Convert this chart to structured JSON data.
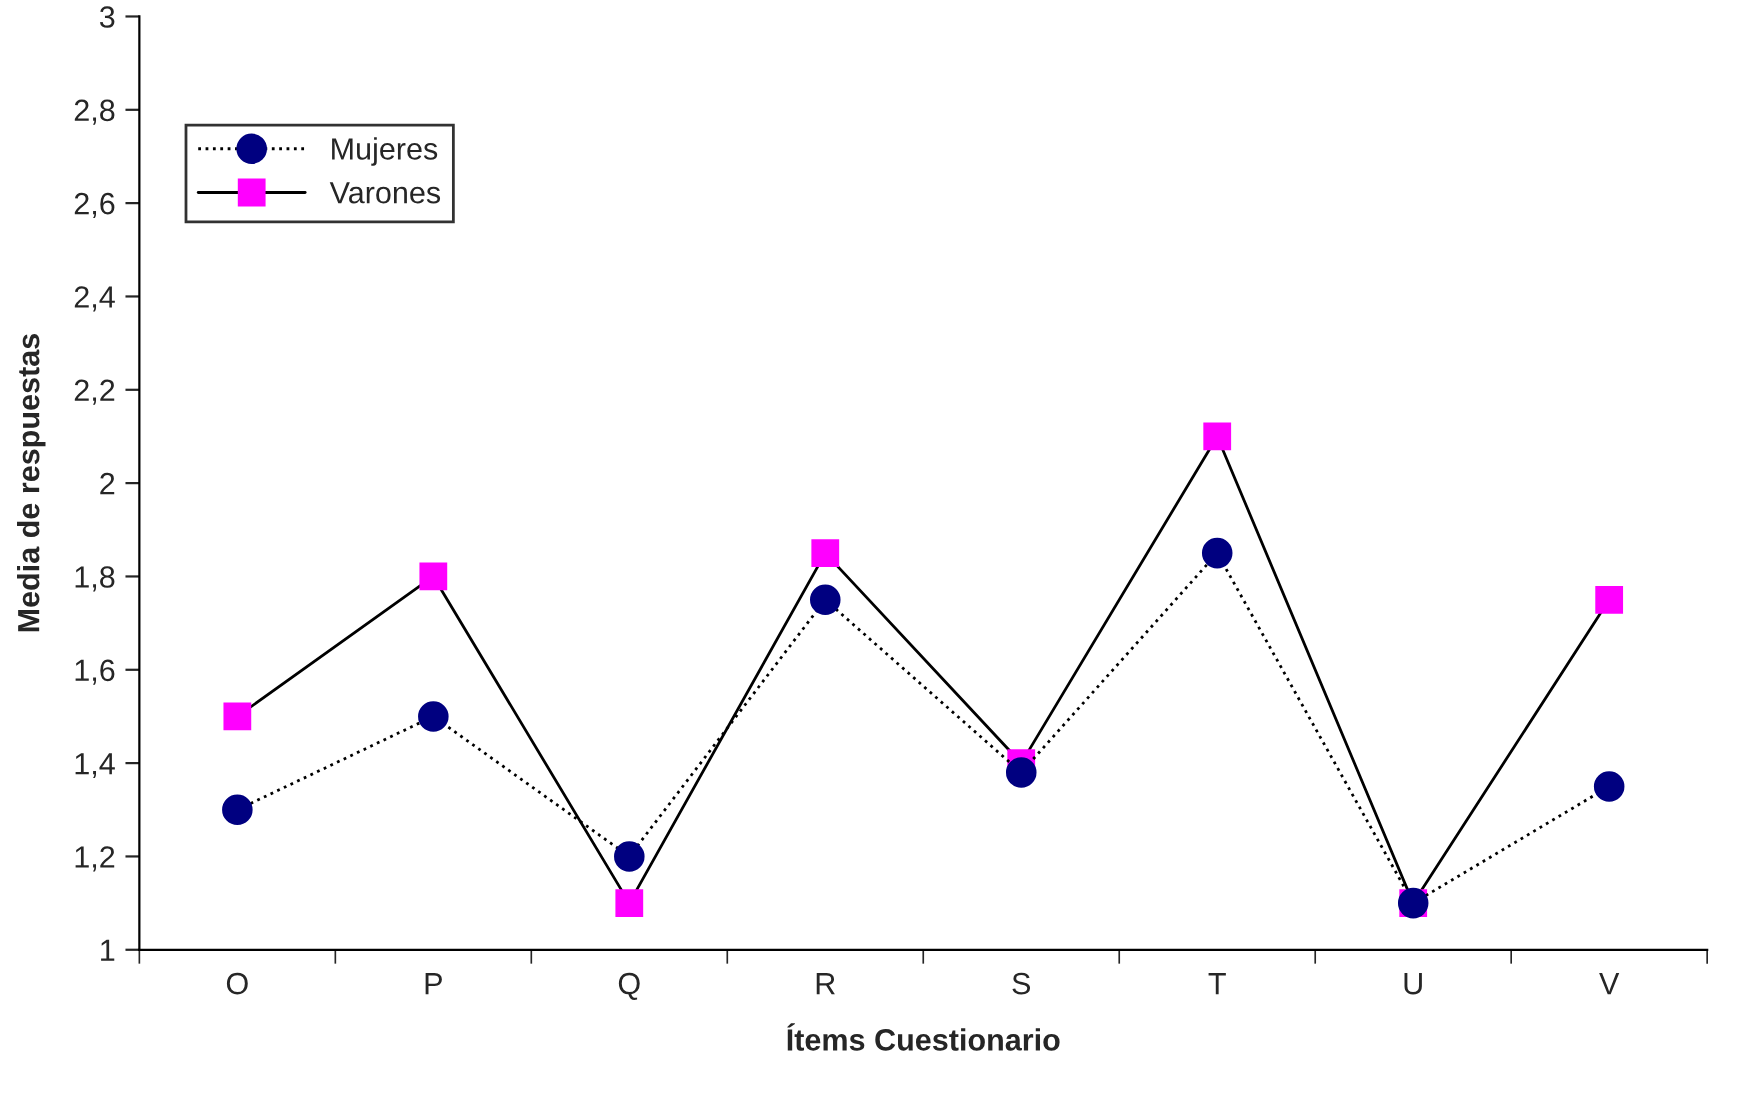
{
  "chart_data": {
    "type": "line",
    "xlabel": "Ítems Cuestionario",
    "ylabel": "Media de respuestas",
    "categories": [
      "O",
      "P",
      "Q",
      "R",
      "S",
      "T",
      "U",
      "V"
    ],
    "series": [
      {
        "name": "Mujeres",
        "color": "#000080",
        "marker": "circle",
        "line_style": "dotted",
        "values": [
          1.3,
          1.5,
          1.2,
          1.75,
          1.38,
          1.85,
          1.1,
          1.35
        ]
      },
      {
        "name": "Varones",
        "color": "#ff00ff",
        "marker": "square",
        "line_style": "solid",
        "values": [
          1.5,
          1.8,
          1.1,
          1.85,
          1.4,
          2.1,
          1.1,
          1.75
        ]
      }
    ],
    "ylim": [
      1,
      3
    ],
    "yticks": [
      1,
      {
        "value": 1.2,
        "label": "1,2"
      },
      {
        "value": 1.4,
        "label": "1,4"
      },
      {
        "value": 1.6,
        "label": "1,6"
      },
      {
        "value": 1.8,
        "label": "1,8"
      },
      2,
      {
        "value": 2.2,
        "label": "2,2"
      },
      {
        "value": 2.4,
        "label": "2,4"
      },
      {
        "value": 2.6,
        "label": "2,6"
      },
      {
        "value": 2.8,
        "label": "2,8"
      },
      3
    ],
    "grid": false,
    "legend": "top left"
  }
}
